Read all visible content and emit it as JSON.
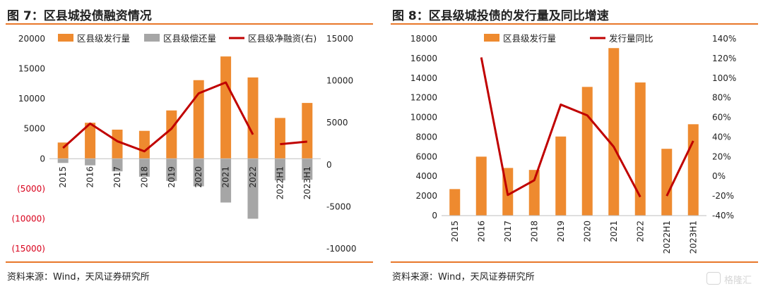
{
  "charts": [
    {
      "title": "图 7：区县城投债融资情况",
      "source": "资料来源：Wind，天风证券研究所"
    },
    {
      "title": "图 8：区县级城投债的发行量及同比增速",
      "source": "资料来源：Wind，天风证券研究所"
    }
  ],
  "watermark": "格隆汇",
  "chart_data": [
    {
      "type": "bar",
      "title": "区县城投债融资情况",
      "categories": [
        "2015",
        "2016",
        "2017",
        "2018",
        "2019",
        "2020",
        "2021",
        "2022",
        "2022H1",
        "2023H1"
      ],
      "series": [
        {
          "name": "区县级发行量",
          "type": "bar",
          "axis": "left",
          "color": "#ee8a2f",
          "values": [
            2700,
            6000,
            4850,
            4650,
            8050,
            13100,
            17050,
            13550,
            6800,
            9300
          ]
        },
        {
          "name": "区县级偿还量",
          "type": "bar",
          "axis": "left",
          "color": "#a6a6a6",
          "values": [
            -700,
            -1100,
            -2100,
            -3000,
            -3700,
            -4600,
            -7300,
            -10000,
            -3600,
            -3500
          ]
        },
        {
          "name": "区县级净融资(右)",
          "type": "line",
          "axis": "right",
          "color": "#c00000",
          "values": [
            2000,
            4900,
            2800,
            1600,
            4300,
            8500,
            9800,
            3600,
            2450,
            2750
          ],
          "breaks_after": [
            "2022"
          ]
        }
      ],
      "yleft": {
        "ylim": [
          -15000,
          20000
        ],
        "ticks": [
          20000,
          15000,
          10000,
          5000,
          0,
          -5000,
          -10000,
          -15000
        ],
        "tick_labels": [
          "20000",
          "15000",
          "10000",
          "5000",
          "0",
          "(5000)",
          "(10000)",
          "(15000)"
        ],
        "negative_color": "#d9001b"
      },
      "yright": {
        "ylim": [
          -10000,
          15000
        ],
        "ticks": [
          15000,
          10000,
          5000,
          0,
          -5000,
          -10000
        ],
        "tick_labels": [
          "15000",
          "10000",
          "5000",
          "0",
          "-5000",
          "-10000"
        ]
      },
      "legend": "top",
      "grid": false
    },
    {
      "type": "bar",
      "title": "区县级城投债的发行量及同比增速",
      "categories": [
        "2015",
        "2016",
        "2017",
        "2018",
        "2019",
        "2020",
        "2021",
        "2022",
        "2022H1",
        "2023H1"
      ],
      "series": [
        {
          "name": "区县级发行量",
          "type": "bar",
          "axis": "left",
          "color": "#ee8a2f",
          "values": [
            2700,
            6000,
            4850,
            4650,
            8050,
            13100,
            17050,
            13550,
            6800,
            9300
          ]
        },
        {
          "name": "发行量同比",
          "type": "line",
          "axis": "right",
          "color": "#c00000",
          "values": [
            null,
            1.21,
            -0.19,
            -0.04,
            0.73,
            0.62,
            0.3,
            -0.21,
            -0.2,
            0.36
          ],
          "breaks_after": [
            "2022"
          ]
        }
      ],
      "yleft": {
        "ylim": [
          0,
          18000
        ],
        "ticks": [
          18000,
          16000,
          14000,
          12000,
          10000,
          8000,
          6000,
          4000,
          2000,
          0
        ],
        "tick_labels": [
          "18000",
          "16000",
          "14000",
          "12000",
          "10000",
          "8000",
          "6000",
          "4000",
          "2000",
          "0"
        ]
      },
      "yright": {
        "ylim": [
          -0.4,
          1.4
        ],
        "ticks": [
          1.4,
          1.2,
          1.0,
          0.8,
          0.6,
          0.4,
          0.2,
          0,
          -0.2,
          -0.4
        ],
        "tick_labels": [
          "140%",
          "120%",
          "100%",
          "80%",
          "60%",
          "40%",
          "20%",
          "0%",
          "-20%",
          "-40%"
        ]
      },
      "legend": "top",
      "grid": false
    }
  ]
}
